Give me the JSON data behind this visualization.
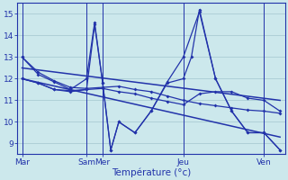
{
  "xlabel": "Température (°c)",
  "bg_color": "#cce8ec",
  "grid_color": "#aaccd4",
  "line_color": "#2233aa",
  "spine_color": "#2233aa",
  "ylim": [
    8.5,
    15.5
  ],
  "xlim": [
    -0.3,
    16.3
  ],
  "day_positions": [
    0,
    4.0,
    5.0,
    10.0,
    15.0
  ],
  "day_labels": [
    "Mar",
    "Sam",
    "Mer",
    "Jeu",
    "Ven"
  ],
  "yticks": [
    9,
    10,
    11,
    12,
    13,
    14,
    15
  ],
  "series": [
    {
      "x": [
        0,
        1,
        2,
        3,
        4,
        5,
        6,
        7,
        8,
        9,
        10,
        11,
        12,
        13,
        14,
        15,
        16
      ],
      "y": [
        13.0,
        12.3,
        11.9,
        11.6,
        11.55,
        11.6,
        11.65,
        11.5,
        11.4,
        11.2,
        11.0,
        10.85,
        10.75,
        10.65,
        10.55,
        10.5,
        10.4
      ]
    },
    {
      "x": [
        0,
        1,
        2,
        3,
        4,
        4.5,
        5,
        5.5,
        6,
        7,
        8,
        9,
        10,
        10.5,
        11,
        12,
        13,
        14,
        15,
        16
      ],
      "y": [
        13.0,
        12.2,
        11.85,
        11.5,
        12.0,
        14.6,
        11.8,
        8.7,
        10.0,
        9.5,
        10.5,
        11.8,
        12.0,
        13.0,
        15.2,
        12.0,
        10.5,
        9.5,
        9.5,
        8.7
      ]
    },
    {
      "x": [
        0,
        1,
        2,
        3,
        4,
        5,
        6,
        7,
        8,
        9,
        10,
        11,
        12,
        13,
        14,
        15,
        16
      ],
      "y": [
        12.0,
        11.8,
        11.5,
        11.4,
        11.5,
        11.55,
        11.4,
        11.3,
        11.1,
        10.95,
        10.8,
        11.3,
        11.4,
        11.4,
        11.1,
        11.0,
        10.5
      ]
    },
    {
      "x": [
        0,
        1,
        2,
        3,
        4,
        4.5,
        5,
        5.5,
        6,
        7,
        8,
        9,
        10,
        11,
        12,
        13,
        14,
        15,
        16
      ],
      "y": [
        12.0,
        11.8,
        11.5,
        11.45,
        11.5,
        14.5,
        11.8,
        8.7,
        10.0,
        9.5,
        10.5,
        11.85,
        13.0,
        15.1,
        12.0,
        10.5,
        9.5,
        9.5,
        8.7
      ]
    }
  ],
  "trend_lines": [
    {
      "x": [
        0,
        16
      ],
      "y": [
        12.5,
        11.0
      ]
    },
    {
      "x": [
        0,
        16
      ],
      "y": [
        12.0,
        9.3
      ]
    }
  ]
}
